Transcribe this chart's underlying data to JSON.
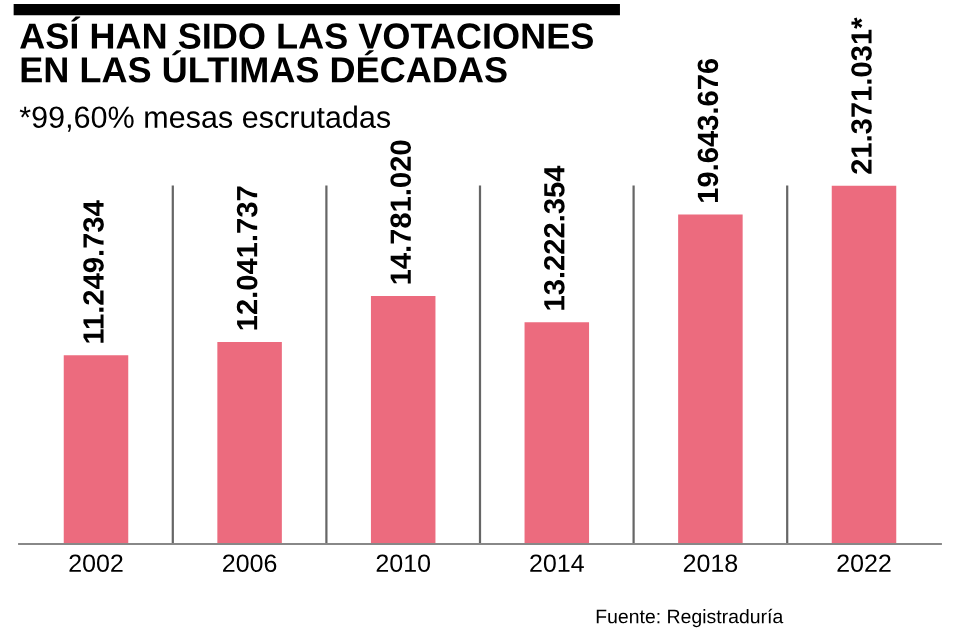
{
  "chart_data": {
    "type": "bar",
    "title": "ASÍ HAN SIDO LAS VOTACIONES\nEN LAS ÚLTIMAS DÉCADAS",
    "subtitle": "*99,60% mesas escrutadas",
    "categories": [
      "2002",
      "2006",
      "2010",
      "2014",
      "2018",
      "2022"
    ],
    "values": [
      11249734,
      12041737,
      14781020,
      13222354,
      19643676,
      21371031
    ],
    "value_labels": [
      "11.249.734",
      "12.041.737",
      "14.781.020",
      "13.222.354",
      "19.643.676",
      "21.371.031*"
    ],
    "color": "#ec6b7e",
    "grid": "x",
    "tick_labels": "x",
    "annotations": [
      "Fuente: Registraduría"
    ]
  }
}
